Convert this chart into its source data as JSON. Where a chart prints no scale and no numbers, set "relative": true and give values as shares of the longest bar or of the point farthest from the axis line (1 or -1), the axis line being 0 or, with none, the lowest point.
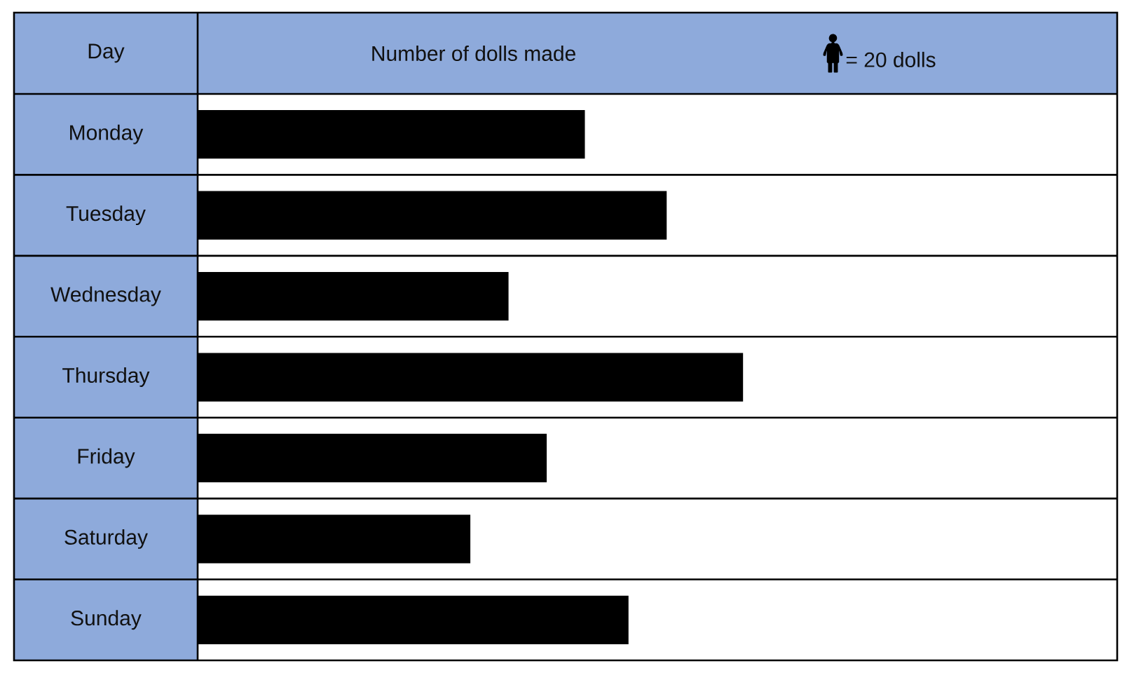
{
  "chart_data": {
    "type": "bar",
    "orientation": "horizontal",
    "relative": true,
    "xlabel": "Number of dolls made",
    "ylabel": "Day",
    "categories": [
      "Monday",
      "Tuesday",
      "Wednesday",
      "Thursday",
      "Friday",
      "Saturday",
      "Sunday"
    ],
    "series": [
      {
        "name": "= 20 dolls",
        "color": "#000000",
        "values": [
          0.71,
          0.86,
          0.57,
          1,
          0.64,
          0.5,
          0.79
        ]
      }
    ],
    "legend": "top right"
  }
}
